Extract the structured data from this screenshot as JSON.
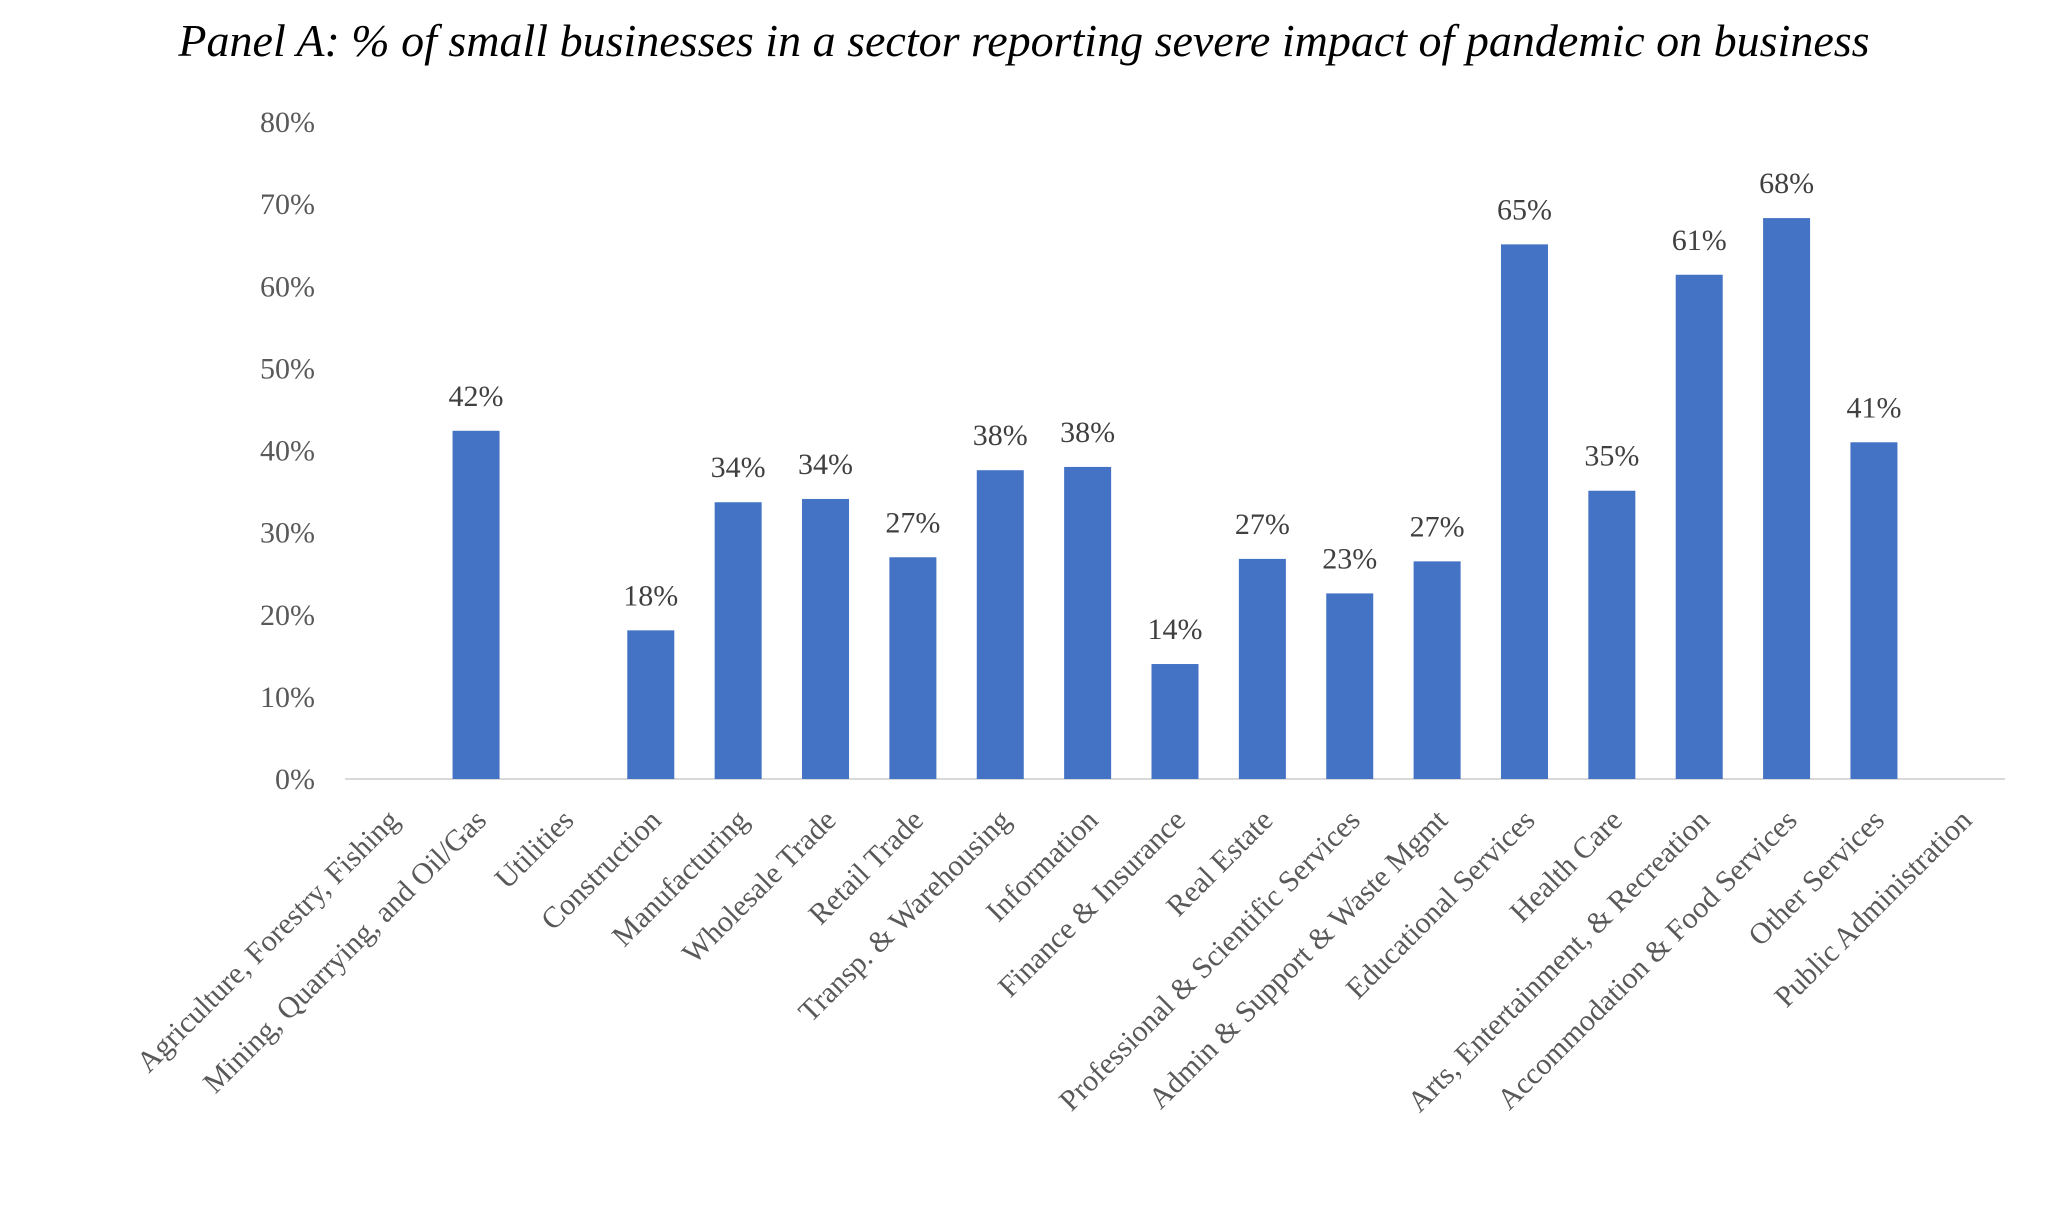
{
  "chart_data": {
    "type": "bar",
    "title": "Panel A: % of small businesses in a sector reporting severe impact of pandemic on business",
    "xlabel": "",
    "ylabel": "",
    "ylim": [
      0,
      80
    ],
    "yticks": [
      "0%",
      "10%",
      "20%",
      "30%",
      "40%",
      "50%",
      "60%",
      "70%",
      "80%"
    ],
    "ytick_values": [
      0,
      10,
      20,
      30,
      40,
      50,
      60,
      70,
      80
    ],
    "grid": false,
    "legend": "none",
    "bar_color": "#4472C4",
    "categories": [
      "Agriculture, Forestry, Fishing",
      "Mining, Quarrying, and Oil/Gas",
      "Utilities",
      "Construction",
      "Manufacturing",
      "Wholesale Trade",
      "Retail Trade",
      "Transp. & Warehousing",
      "Information",
      "Finance & Insurance",
      "Real Estate",
      "Professional & Scientific Services",
      "Admin & Support & Waste Mgmt",
      "Educational Services",
      "Health Care",
      "Arts, Entertainment, & Recreation",
      "Accommodation & Food Services",
      "Other Services",
      "Public Administration"
    ],
    "values": [
      null,
      42.4,
      null,
      18.1,
      33.7,
      34.1,
      27.0,
      37.6,
      38.0,
      14.0,
      26.8,
      22.6,
      26.5,
      65.1,
      35.1,
      61.4,
      68.3,
      41.0,
      null
    ],
    "data_labels": [
      "",
      "42%",
      "",
      "18%",
      "34%",
      "34%",
      "27%",
      "38%",
      "38%",
      "14%",
      "27%",
      "23%",
      "27%",
      "65%",
      "35%",
      "61%",
      "68%",
      "41%",
      ""
    ]
  }
}
